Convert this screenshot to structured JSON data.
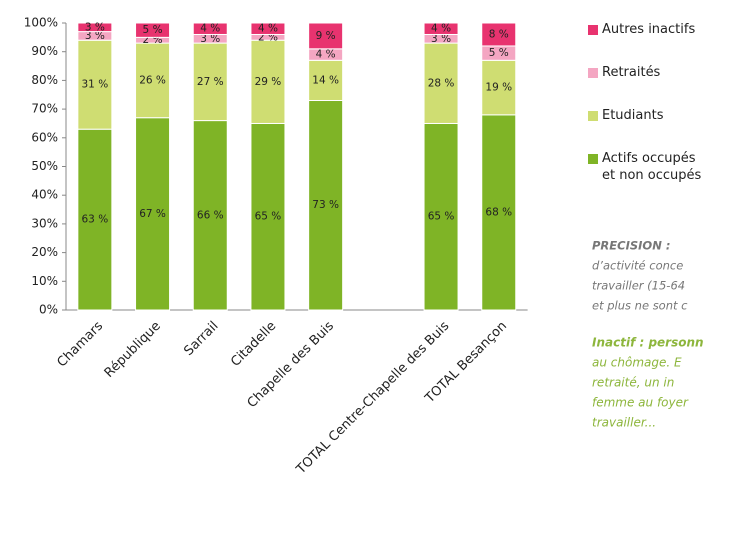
{
  "chart_data": {
    "type": "stacked_bar",
    "categories": [
      "Chamars",
      "République",
      "Sarrail",
      "Citadelle",
      "Chapelle des Buis",
      null,
      "TOTAL Centre-Chapelle des Buis",
      "TOTAL Besançon"
    ],
    "series": [
      {
        "name": "Actifs occupés et non occupés",
        "color": "#7fb426",
        "values": [
          63,
          67,
          66,
          65,
          73,
          null,
          65,
          68
        ],
        "value_labels": [
          "63 %",
          "67 %",
          "66 %",
          "65 %",
          "73 %",
          null,
          "65 %",
          "68 %"
        ]
      },
      {
        "name": "Etudiants",
        "color": "#cfdd72",
        "values": [
          31,
          26,
          27,
          29,
          14,
          null,
          28,
          19
        ],
        "value_labels": [
          "31 %",
          "26 %",
          "27 %",
          "29 %",
          "14 %",
          null,
          "28 %",
          "19 %"
        ]
      },
      {
        "name": "Retraités",
        "color": "#f4a6c2",
        "values": [
          3,
          2,
          3,
          2,
          4,
          null,
          3,
          5
        ],
        "value_labels": [
          "3 %",
          "2 %",
          "3 %",
          "2 %",
          "4 %",
          null,
          "3 %",
          "5 %"
        ]
      },
      {
        "name": "Autres inactifs",
        "color": "#e8336f",
        "values": [
          3,
          5,
          4,
          4,
          9,
          null,
          4,
          8
        ],
        "value_labels": [
          "3 %",
          "5 %",
          "4 %",
          "4 %",
          "9 %",
          null,
          "4 %",
          "8 %"
        ]
      }
    ],
    "ylim": [
      0,
      100
    ],
    "yticks": [
      {
        "value": 0,
        "label": "0%"
      },
      {
        "value": 10,
        "label": "10%"
      },
      {
        "value": 20,
        "label": "20%"
      },
      {
        "value": 30,
        "label": "30%"
      },
      {
        "value": 40,
        "label": "40%"
      },
      {
        "value": 50,
        "label": "50%"
      },
      {
        "value": 60,
        "label": "60%"
      },
      {
        "value": 70,
        "label": "70%"
      },
      {
        "value": 80,
        "label": "80%"
      },
      {
        "value": 90,
        "label": "90%"
      },
      {
        "value": 100,
        "label": "100%"
      }
    ],
    "legend_order": "reversed",
    "notes": {
      "precision": [
        "PRECISION   :",
        "d’activité conce",
        "travailler (15-64",
        "et plus ne sont c"
      ],
      "inactif": [
        "Inactif : personn",
        "au chômage. E",
        "retraité, un in",
        "femme au foyer",
        "travailler..."
      ]
    }
  }
}
